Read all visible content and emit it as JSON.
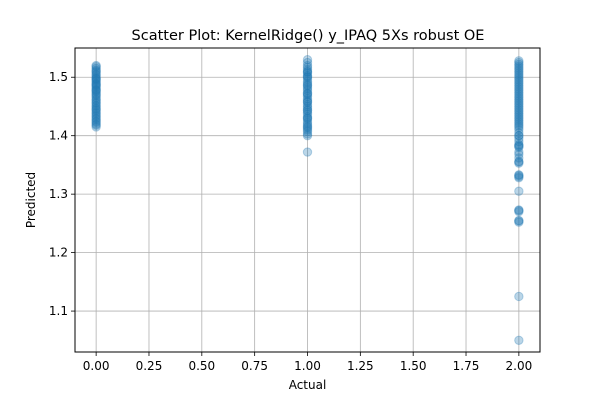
{
  "chart_data": {
    "type": "scatter",
    "title": "Scatter Plot: KernelRidge() y_IPAQ 5Xs robust OE",
    "xlabel": "Actual",
    "ylabel": "Predicted",
    "xlim": [
      -0.1,
      2.1
    ],
    "ylim": [
      1.03,
      1.55
    ],
    "grid": true,
    "point_color": "#1f77b4",
    "point_alpha": 0.3,
    "x_ticks": [
      0.0,
      0.25,
      0.5,
      0.75,
      1.0,
      1.25,
      1.5,
      1.75,
      2.0
    ],
    "x_tick_labels": [
      "0.00",
      "0.25",
      "0.50",
      "0.75",
      "1.00",
      "1.25",
      "1.50",
      "1.75",
      "2.00"
    ],
    "y_ticks": [
      1.1,
      1.2,
      1.3,
      1.4,
      1.5
    ],
    "y_tick_labels": [
      "1.1",
      "1.2",
      "1.3",
      "1.4",
      "1.5"
    ],
    "series": [
      {
        "x": [
          0,
          0,
          0,
          0,
          0,
          0,
          0,
          0,
          0,
          0,
          0,
          0,
          0,
          0,
          0,
          0,
          0,
          0,
          0,
          0,
          0,
          0,
          0,
          0,
          0,
          0,
          0,
          0,
          0,
          0,
          0,
          0,
          0,
          0,
          0,
          0,
          0,
          0,
          0,
          0,
          0,
          0,
          0,
          0,
          0,
          0
        ],
        "y": [
          1.52,
          1.518,
          1.515,
          1.512,
          1.51,
          1.508,
          1.505,
          1.503,
          1.5,
          1.498,
          1.495,
          1.493,
          1.49,
          1.488,
          1.485,
          1.483,
          1.48,
          1.478,
          1.475,
          1.472,
          1.47,
          1.468,
          1.465,
          1.462,
          1.46,
          1.457,
          1.455,
          1.452,
          1.45,
          1.447,
          1.445,
          1.443,
          1.44,
          1.438,
          1.435,
          1.433,
          1.43,
          1.428,
          1.425,
          1.423,
          1.42,
          1.418,
          1.415,
          1.497,
          1.487,
          1.477
        ]
      },
      {
        "x": [
          1,
          1,
          1,
          1,
          1,
          1,
          1,
          1,
          1,
          1,
          1,
          1,
          1,
          1,
          1,
          1,
          1,
          1,
          1,
          1,
          1,
          1,
          1,
          1,
          1,
          1,
          1,
          1,
          1,
          1,
          1,
          1,
          1,
          1,
          1,
          1,
          1,
          1,
          1,
          1,
          1,
          1,
          1,
          1,
          1,
          1,
          1,
          1
        ],
        "y": [
          1.53,
          1.525,
          1.52,
          1.517,
          1.513,
          1.51,
          1.507,
          1.503,
          1.5,
          1.497,
          1.493,
          1.49,
          1.487,
          1.483,
          1.48,
          1.477,
          1.473,
          1.47,
          1.467,
          1.463,
          1.46,
          1.457,
          1.453,
          1.45,
          1.447,
          1.443,
          1.44,
          1.437,
          1.433,
          1.43,
          1.427,
          1.423,
          1.42,
          1.417,
          1.413,
          1.41,
          1.407,
          1.403,
          1.4,
          1.372,
          1.509,
          1.501,
          1.486,
          1.472,
          1.458,
          1.444,
          1.43,
          1.415
        ]
      },
      {
        "x": [
          2,
          2,
          2,
          2,
          2,
          2,
          2,
          2,
          2,
          2,
          2,
          2,
          2,
          2,
          2,
          2,
          2,
          2,
          2,
          2,
          2,
          2,
          2,
          2,
          2,
          2,
          2,
          2,
          2,
          2,
          2,
          2,
          2,
          2,
          2,
          2,
          2,
          2,
          2,
          2,
          2,
          2,
          2,
          2,
          2,
          2,
          2,
          2,
          2,
          2,
          2,
          2,
          2,
          2,
          2,
          2,
          2,
          2,
          2,
          2,
          2,
          2,
          2,
          2,
          2,
          2,
          2,
          2
        ],
        "y": [
          1.528,
          1.525,
          1.522,
          1.519,
          1.516,
          1.513,
          1.51,
          1.507,
          1.504,
          1.501,
          1.498,
          1.495,
          1.492,
          1.489,
          1.486,
          1.483,
          1.48,
          1.477,
          1.474,
          1.471,
          1.468,
          1.465,
          1.462,
          1.459,
          1.456,
          1.453,
          1.45,
          1.447,
          1.444,
          1.441,
          1.438,
          1.435,
          1.432,
          1.429,
          1.426,
          1.423,
          1.42,
          1.417,
          1.414,
          1.41,
          1.405,
          1.4,
          1.395,
          1.39,
          1.385,
          1.383,
          1.382,
          1.38,
          1.372,
          1.368,
          1.362,
          1.356,
          1.355,
          1.353,
          1.333,
          1.332,
          1.33,
          1.328,
          1.305,
          1.273,
          1.272,
          1.27,
          1.255,
          1.254,
          1.252,
          1.125,
          1.05,
          1.4
        ]
      }
    ]
  }
}
